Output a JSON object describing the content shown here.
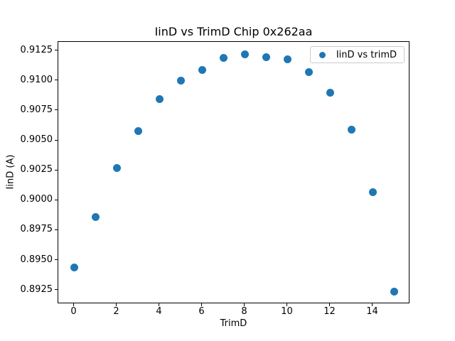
{
  "figure": {
    "background": "#ffffff",
    "spine_color": "#000000",
    "legend_border_color": "#cccccc"
  },
  "chart_data": {
    "type": "scatter",
    "title": "IinD vs TrimD Chip 0x262aa",
    "xlabel": "TrimD",
    "ylabel": "IinD (A)",
    "legend": [
      {
        "label": "IinD vs trimD",
        "marker": "circle",
        "color": "#1f77b4"
      }
    ],
    "legend_position": "upper right",
    "marker_color": "#1f77b4",
    "grid": false,
    "x": [
      0,
      1,
      2,
      3,
      4,
      5,
      6,
      7,
      8,
      9,
      10,
      11,
      12,
      13,
      14,
      15
    ],
    "y": [
      0.8944,
      0.8986,
      0.9027,
      0.9058,
      0.9085,
      0.91,
      0.9109,
      0.9119,
      0.9122,
      0.912,
      0.9118,
      0.9107,
      0.909,
      0.9059,
      0.9007,
      0.8924
    ],
    "xlim": [
      -0.75,
      15.75
    ],
    "ylim": [
      0.89136,
      0.91325
    ],
    "xticks": [
      0,
      2,
      4,
      6,
      8,
      10,
      12,
      14
    ],
    "yticks": [
      0.8925,
      0.895,
      0.8975,
      0.9,
      0.9025,
      0.905,
      0.9075,
      0.91,
      0.9125
    ],
    "ytick_decimals": 4
  }
}
